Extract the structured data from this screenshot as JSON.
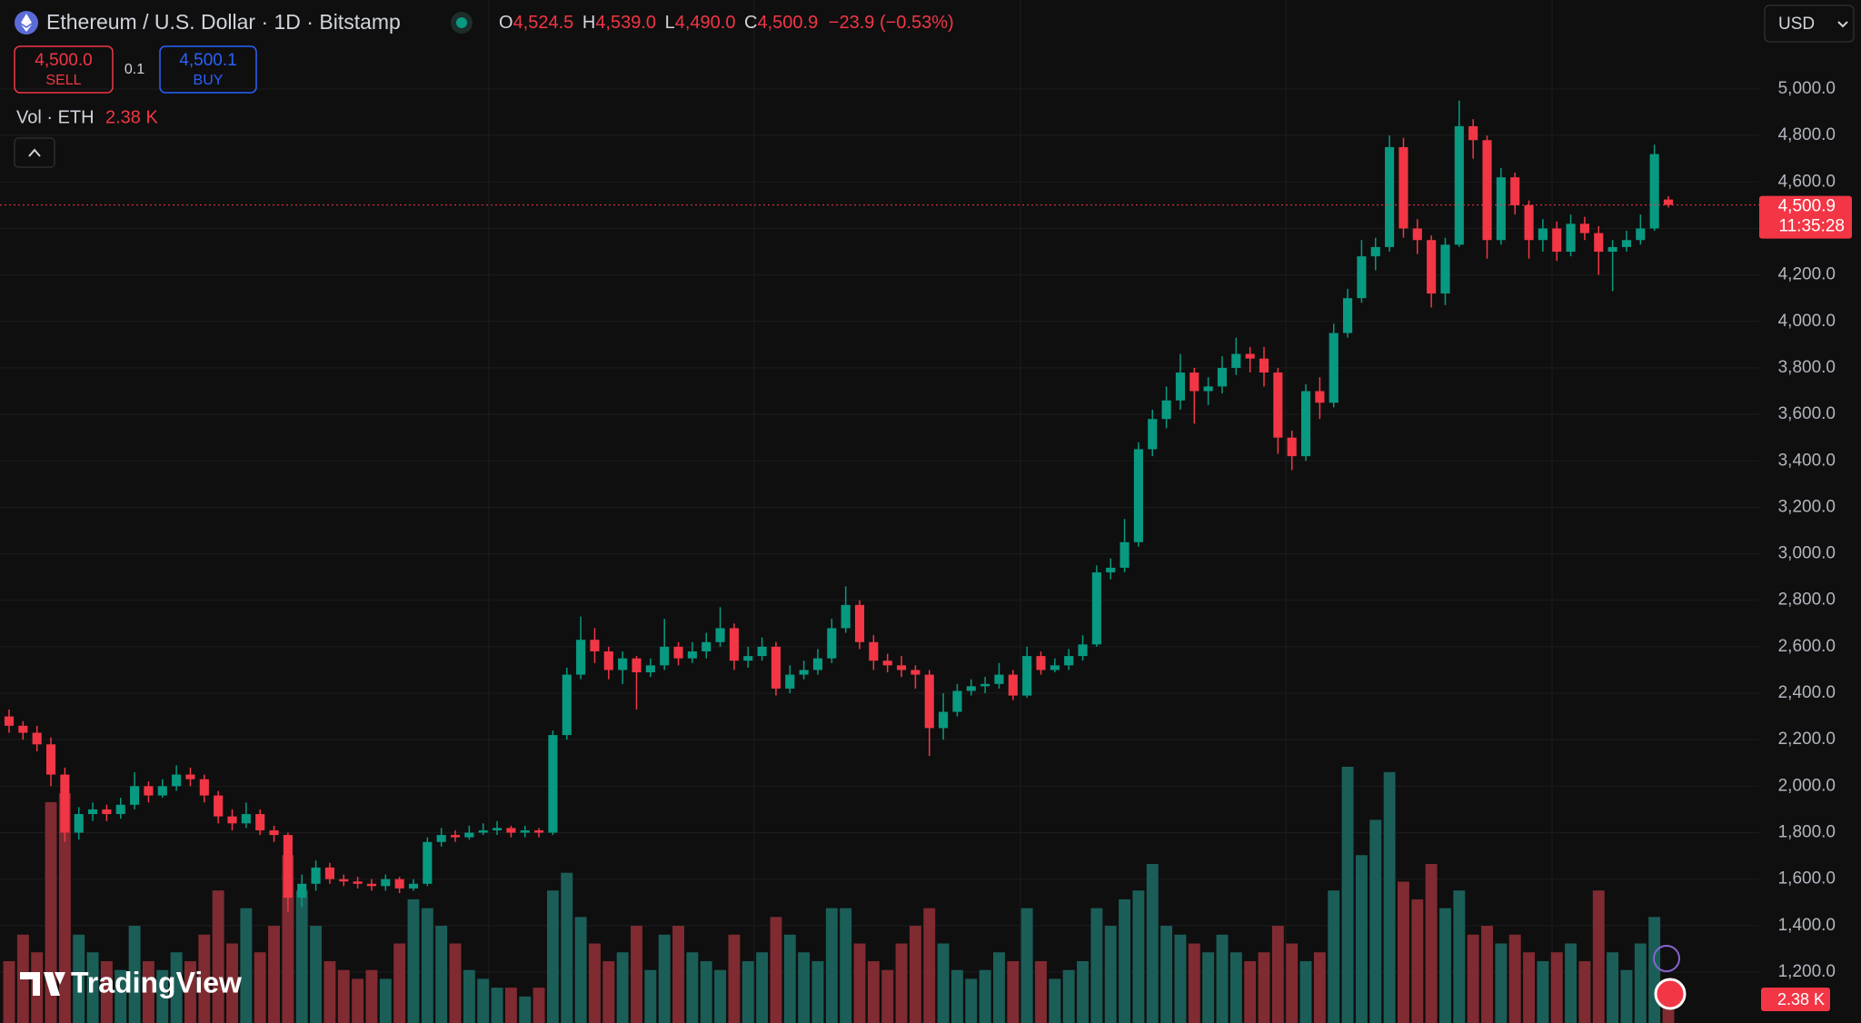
{
  "chart_data": {
    "type": "candlestick",
    "title": "Ethereum / U.S. Dollar · 1D · Bitstamp",
    "ohlc": [
      {
        "label": "O",
        "value": "4,524.5"
      },
      {
        "label": "H",
        "value": "4,539.0"
      },
      {
        "label": "L",
        "value": "4,490.0"
      },
      {
        "label": "C",
        "value": "4,500.9"
      }
    ],
    "change": "−23.9 (−0.53%)",
    "trade": {
      "sell_price": "4,500.0",
      "sell_label": "SELL",
      "quantity": "0.1",
      "buy_price": "4,500.1",
      "buy_label": "BUY"
    },
    "volume_title": "Vol · ETH",
    "volume_last_label": "2.38 K",
    "last_price_label": "4,500.9",
    "countdown": "11:35:28",
    "currency": "USD",
    "brand": "TradingView",
    "up_color": "#089981",
    "down_color": "#f23645",
    "volume_up_color": "#1b5e58",
    "volume_down_color": "#7f2b31",
    "grid": true,
    "ylim": [
      981,
      5383
    ],
    "yticks": [
      {
        "value": 1200,
        "label": "1,200.0"
      },
      {
        "value": 1400,
        "label": "1,400.0"
      },
      {
        "value": 1600,
        "label": "1,600.0"
      },
      {
        "value": 1800,
        "label": "1,800.0"
      },
      {
        "value": 2000,
        "label": "2,000.0"
      },
      {
        "value": 2200,
        "label": "2,200.0"
      },
      {
        "value": 2400,
        "label": "2,400.0"
      },
      {
        "value": 2600,
        "label": "2,600.0"
      },
      {
        "value": 2800,
        "label": "2,800.0"
      },
      {
        "value": 3000,
        "label": "3,000.0"
      },
      {
        "value": 3200,
        "label": "3,200.0"
      },
      {
        "value": 3400,
        "label": "3,400.0"
      },
      {
        "value": 3600,
        "label": "3,600.0"
      },
      {
        "value": 3800,
        "label": "3,800.0"
      },
      {
        "value": 4000,
        "label": "4,000.0"
      },
      {
        "value": 4200,
        "label": "4,200.0"
      },
      {
        "value": 4400,
        "label": "4,400.0"
      },
      {
        "value": 4600,
        "label": "4,600.0"
      },
      {
        "value": 4800,
        "label": "4,800.0"
      },
      {
        "value": 5000,
        "label": "5,000.0"
      }
    ],
    "open": [
      2300,
      2260,
      2230,
      2180,
      2050,
      1800,
      1880,
      1900,
      1880,
      1920,
      2000,
      1960,
      2000,
      2050,
      2030,
      1960,
      1870,
      1840,
      1880,
      1810,
      1790,
      1520,
      1580,
      1650,
      1600,
      1590,
      1580,
      1570,
      1600,
      1560,
      1580,
      1760,
      1790,
      1780,
      1800,
      1810,
      1820,
      1800,
      1810,
      1800,
      2220,
      2480,
      2630,
      2580,
      2500,
      2550,
      2490,
      2520,
      2600,
      2550,
      2580,
      2620,
      2680,
      2540,
      2560,
      2600,
      2420,
      2480,
      2500,
      2550,
      2680,
      2780,
      2620,
      2540,
      2520,
      2500,
      2480,
      2250,
      2320,
      2410,
      2430,
      2440,
      2480,
      2390,
      2560,
      2500,
      2520,
      2560,
      2610,
      2920,
      2940,
      3050,
      3450,
      3580,
      3660,
      3780,
      3700,
      3720,
      3800,
      3860,
      3840,
      3780,
      3500,
      3420,
      3700,
      3650,
      3950,
      4100,
      4280,
      4320,
      4750,
      4400,
      4350,
      4120,
      4330,
      4840,
      4780,
      4350,
      4620,
      4500,
      4350,
      4400,
      4300,
      4420,
      4380,
      4300,
      4320,
      4350,
      4400,
      4524.5
    ],
    "high": [
      2330,
      2280,
      2260,
      2210,
      2080,
      1910,
      1930,
      1920,
      1950,
      2060,
      2020,
      2030,
      2090,
      2080,
      2050,
      1980,
      1900,
      1930,
      1900,
      1830,
      1800,
      1620,
      1680,
      1670,
      1620,
      1610,
      1600,
      1620,
      1610,
      1600,
      1780,
      1820,
      1810,
      1830,
      1840,
      1850,
      1830,
      1830,
      1820,
      2240,
      2510,
      2730,
      2680,
      2600,
      2580,
      2560,
      2550,
      2720,
      2620,
      2620,
      2660,
      2770,
      2700,
      2600,
      2640,
      2620,
      2520,
      2540,
      2590,
      2720,
      2860,
      2800,
      2650,
      2570,
      2560,
      2520,
      2500,
      2400,
      2440,
      2460,
      2470,
      2530,
      2500,
      2600,
      2580,
      2550,
      2590,
      2650,
      2950,
      2980,
      3150,
      3480,
      3620,
      3720,
      3860,
      3800,
      3760,
      3850,
      3930,
      3890,
      3890,
      3800,
      3530,
      3730,
      3760,
      3990,
      4140,
      4350,
      4360,
      4800,
      4790,
      4440,
      4370,
      4360,
      4950,
      4870,
      4800,
      4660,
      4640,
      4520,
      4440,
      4430,
      4460,
      4450,
      4410,
      4350,
      4390,
      4460,
      4760,
      4539
    ],
    "low": [
      2230,
      2200,
      2150,
      2000,
      1760,
      1770,
      1850,
      1850,
      1860,
      1900,
      1930,
      1950,
      1980,
      2000,
      1930,
      1840,
      1810,
      1820,
      1790,
      1760,
      1460,
      1480,
      1550,
      1580,
      1570,
      1560,
      1550,
      1550,
      1540,
      1550,
      1570,
      1740,
      1760,
      1770,
      1790,
      1790,
      1780,
      1780,
      1780,
      1790,
      2200,
      2460,
      2530,
      2460,
      2440,
      2330,
      2470,
      2500,
      2520,
      2530,
      2550,
      2600,
      2500,
      2510,
      2540,
      2390,
      2400,
      2460,
      2480,
      2530,
      2660,
      2590,
      2500,
      2490,
      2470,
      2420,
      2130,
      2200,
      2300,
      2390,
      2400,
      2420,
      2370,
      2380,
      2480,
      2490,
      2500,
      2540,
      2600,
      2890,
      2920,
      3030,
      3420,
      3540,
      3620,
      3560,
      3640,
      3690,
      3770,
      3780,
      3720,
      3430,
      3360,
      3400,
      3580,
      3630,
      3930,
      4080,
      4220,
      4300,
      4360,
      4290,
      4060,
      4070,
      4320,
      4700,
      4270,
      4330,
      4460,
      4270,
      4300,
      4260,
      4280,
      4350,
      4200,
      4130,
      4300,
      4330,
      4390,
      4490
    ],
    "close": [
      2260,
      2230,
      2180,
      2050,
      1800,
      1880,
      1900,
      1880,
      1920,
      2000,
      1960,
      2000,
      2050,
      2030,
      1960,
      1870,
      1840,
      1880,
      1810,
      1790,
      1520,
      1580,
      1650,
      1600,
      1590,
      1580,
      1570,
      1600,
      1560,
      1580,
      1760,
      1790,
      1780,
      1800,
      1810,
      1820,
      1800,
      1810,
      1800,
      2220,
      2480,
      2630,
      2580,
      2500,
      2550,
      2490,
      2520,
      2600,
      2550,
      2580,
      2620,
      2680,
      2540,
      2560,
      2600,
      2420,
      2480,
      2500,
      2550,
      2680,
      2780,
      2620,
      2540,
      2520,
      2500,
      2480,
      2250,
      2320,
      2410,
      2430,
      2440,
      2480,
      2390,
      2560,
      2500,
      2520,
      2560,
      2610,
      2920,
      2940,
      3050,
      3450,
      3580,
      3660,
      3780,
      3700,
      3720,
      3800,
      3860,
      3840,
      3780,
      3500,
      3420,
      3700,
      3650,
      3950,
      4100,
      4280,
      4320,
      4750,
      4400,
      4350,
      4120,
      4330,
      4840,
      4780,
      4350,
      4620,
      4500,
      4350,
      4400,
      4300,
      4420,
      4380,
      4300,
      4320,
      4350,
      4400,
      4720,
      4500.9
    ],
    "volume": [
      3.5,
      5.0,
      4.0,
      12.5,
      13.0,
      5.0,
      4.0,
      3.5,
      3.0,
      5.5,
      3.5,
      3.0,
      4.0,
      3.5,
      5.0,
      7.5,
      4.5,
      6.5,
      4.0,
      5.5,
      9.5,
      7.5,
      5.5,
      3.5,
      3.0,
      2.5,
      3.0,
      2.5,
      4.5,
      7.0,
      6.5,
      5.5,
      4.5,
      3.0,
      2.5,
      2.0,
      2.0,
      1.5,
      2.0,
      7.5,
      8.5,
      6.0,
      4.5,
      3.5,
      4.0,
      5.5,
      3.0,
      5.0,
      5.5,
      4.0,
      3.5,
      3.0,
      5.0,
      3.5,
      4.0,
      6.0,
      5.0,
      4.0,
      3.5,
      6.5,
      6.5,
      4.5,
      3.5,
      3.0,
      4.5,
      5.5,
      6.5,
      4.5,
      3.0,
      2.5,
      3.0,
      4.0,
      3.5,
      6.5,
      3.5,
      2.5,
      3.0,
      3.5,
      6.5,
      5.5,
      7.0,
      7.5,
      9.0,
      5.5,
      5.0,
      4.5,
      4.0,
      5.0,
      4.0,
      3.5,
      4.0,
      5.5,
      4.5,
      3.5,
      4.0,
      7.5,
      14.5,
      9.5,
      11.5,
      14.2,
      8.0,
      7.0,
      9.0,
      6.5,
      7.5,
      5.0,
      5.5,
      4.5,
      5.0,
      4.0,
      3.5,
      4.0,
      4.5,
      3.5,
      7.5,
      4.0,
      3.0,
      4.5,
      6.0,
      2.38
    ]
  }
}
